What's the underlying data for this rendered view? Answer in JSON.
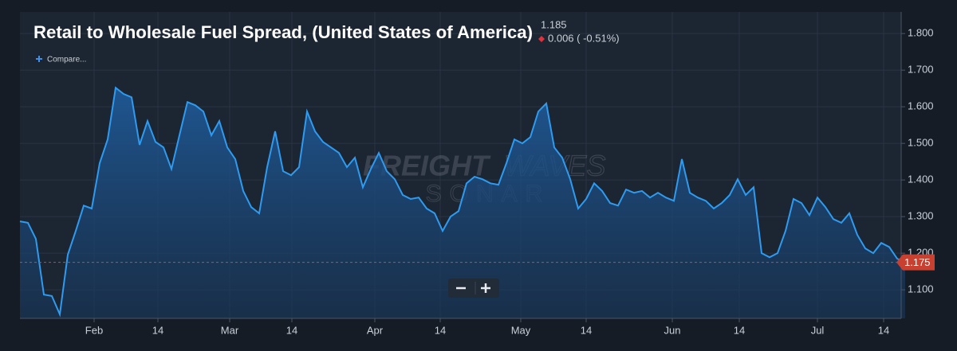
{
  "chart_data": {
    "type": "area",
    "title": "Retail to Wholesale Fuel Spread, (United States of America)",
    "change_label": "0.006 ( -0.51%)",
    "compare_label": "Compare...",
    "watermark": {
      "brand_bold": "FREIGHT",
      "brand_light": "WAVES",
      "product": "SONAR"
    },
    "color": "#2e9bf0",
    "values": [
      1.287,
      1.283,
      1.239,
      1.087,
      1.083,
      1.033,
      1.196,
      1.261,
      1.33,
      1.322,
      1.446,
      1.511,
      1.652,
      1.635,
      1.626,
      1.496,
      1.561,
      1.504,
      1.489,
      1.43,
      1.522,
      1.613,
      1.604,
      1.587,
      1.522,
      1.561,
      1.489,
      1.457,
      1.37,
      1.326,
      1.309,
      1.435,
      1.533,
      1.424,
      1.413,
      1.435,
      1.587,
      1.533,
      1.504,
      1.489,
      1.474,
      1.435,
      1.461,
      1.38,
      1.43,
      1.474,
      1.424,
      1.402,
      1.359,
      1.348,
      1.352,
      1.322,
      1.309,
      1.261,
      1.3,
      1.315,
      1.391,
      1.409,
      1.402,
      1.391,
      1.387,
      1.446,
      1.511,
      1.5,
      1.517,
      1.587,
      1.609,
      1.489,
      1.461,
      1.402,
      1.322,
      1.348,
      1.391,
      1.37,
      1.337,
      1.33,
      1.374,
      1.365,
      1.37,
      1.352,
      1.365,
      1.352,
      1.343,
      1.457,
      1.365,
      1.352,
      1.343,
      1.322,
      1.337,
      1.359,
      1.402,
      1.359,
      1.38,
      1.2,
      1.189,
      1.2,
      1.261,
      1.348,
      1.337,
      1.304,
      1.352,
      1.326,
      1.293,
      1.283,
      1.309,
      1.25,
      1.213,
      1.2,
      1.228,
      1.217,
      1.185,
      1.175
    ],
    "xlim": [
      0,
      110
    ],
    "xticks": [
      {
        "value": 9.3,
        "label": "Feb"
      },
      {
        "value": 17.3,
        "label": "14"
      },
      {
        "value": 26.3,
        "label": "Mar"
      },
      {
        "value": 34.1,
        "label": "14"
      },
      {
        "value": 44.5,
        "label": "Apr"
      },
      {
        "value": 52.7,
        "label": "14"
      },
      {
        "value": 62.8,
        "label": "May"
      },
      {
        "value": 71,
        "label": "14"
      },
      {
        "value": 81.8,
        "label": "Jun"
      },
      {
        "value": 90.2,
        "label": "14"
      },
      {
        "value": 100,
        "label": "Jul"
      },
      {
        "value": 108.3,
        "label": "14"
      }
    ],
    "ylim": [
      1.022,
      1.859
    ],
    "yticks": [
      {
        "value": 1.1,
        "label": "1.100"
      },
      {
        "value": 1.2,
        "label": "1.200"
      },
      {
        "value": 1.3,
        "label": "1.300"
      },
      {
        "value": 1.4,
        "label": "1.400"
      },
      {
        "value": 1.5,
        "label": "1.500"
      },
      {
        "value": 1.6,
        "label": "1.600"
      },
      {
        "value": 1.7,
        "label": "1.700"
      },
      {
        "value": 1.8,
        "label": "1.800"
      }
    ],
    "grid": true
  }
}
